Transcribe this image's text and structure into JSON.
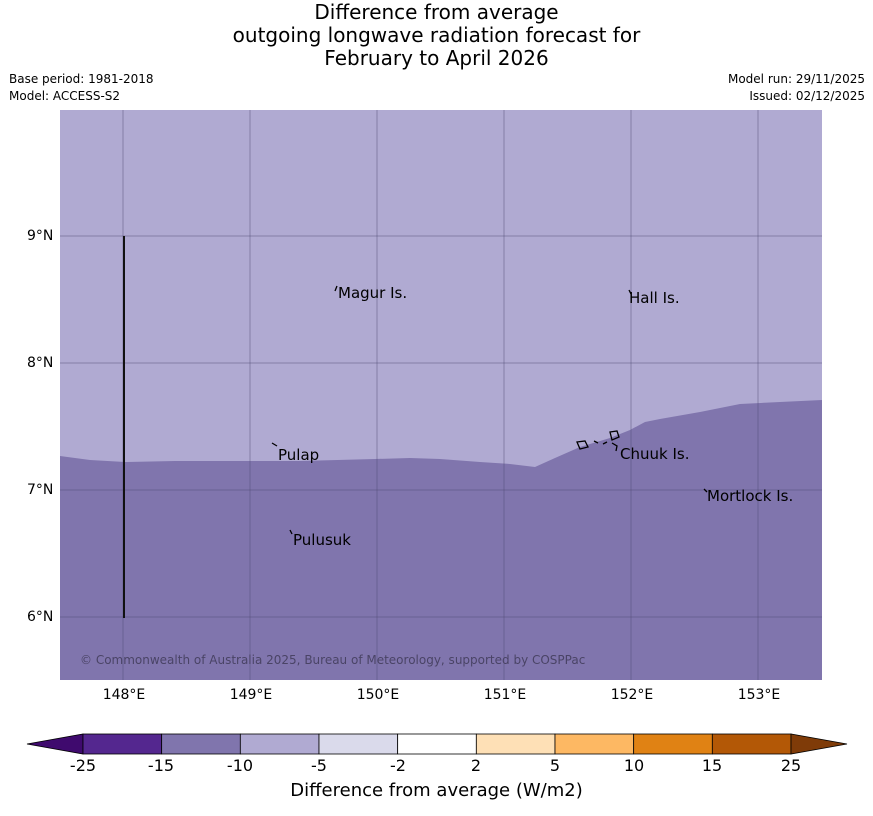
{
  "title": {
    "line1": "Difference from average",
    "line2": "outgoing longwave radiation forecast for",
    "line3": "February to April 2026"
  },
  "meta": {
    "base_period": "Base period: 1981-2018",
    "model": "Model: ACCESS-S2",
    "model_run": "Model run: 29/11/2025",
    "issued": "Issued: 02/12/2025"
  },
  "map": {
    "lat_labels": [
      "9°N",
      "8°N",
      "7°N",
      "6°N"
    ],
    "lon_labels": [
      "148°E",
      "149°E",
      "150°E",
      "151°E",
      "152°E",
      "153°E"
    ],
    "places": {
      "magur": "Magur Is.",
      "hall": "Hall Is.",
      "pulap": "Pulap",
      "chuuk": "Chuuk Is.",
      "mortlock": "Mortlock Is.",
      "pulusuk": "Pulusuk"
    },
    "copyright": "© Commonwealth of Australia 2025, Bureau of Meteorology, supported by COSPPac",
    "colors": {
      "band_light": "#b0aad2",
      "band_mid": "#8075ad"
    }
  },
  "colorbar": {
    "ticks": [
      "-25",
      "-15",
      "-10",
      "-5",
      "-2",
      "2",
      "5",
      "10",
      "15",
      "25"
    ],
    "colors": [
      "#3f0a6e",
      "#54278f",
      "#8075ad",
      "#b0aad2",
      "#dadaeb",
      "#ffffff",
      "#fee0b6",
      "#fdb863",
      "#e08214",
      "#b35806",
      "#7f3b08"
    ],
    "label": "Difference from average (W/m2)"
  }
}
